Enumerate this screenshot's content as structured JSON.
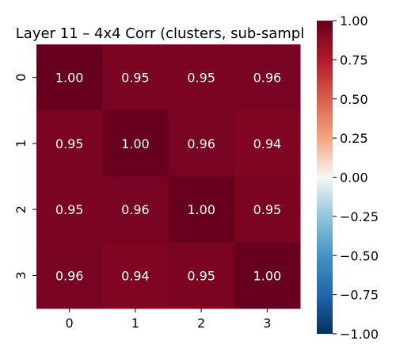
{
  "chart_data": {
    "type": "heatmap",
    "title": "Layer 11 – 4x4 Corr (clusters, sub-sampl",
    "xlabel": "",
    "ylabel": "",
    "x_categories": [
      "0",
      "1",
      "2",
      "3"
    ],
    "y_categories": [
      "0",
      "1",
      "2",
      "3"
    ],
    "values": [
      [
        1.0,
        0.95,
        0.95,
        0.96
      ],
      [
        0.95,
        1.0,
        0.96,
        0.94
      ],
      [
        0.95,
        0.96,
        1.0,
        0.95
      ],
      [
        0.96,
        0.94,
        0.95,
        1.0
      ]
    ],
    "cell_labels": [
      [
        "1.00",
        "0.95",
        "0.95",
        "0.96"
      ],
      [
        "0.95",
        "1.00",
        "0.96",
        "0.94"
      ],
      [
        "0.95",
        "0.96",
        "1.00",
        "0.95"
      ],
      [
        "0.96",
        "0.94",
        "0.95",
        "1.00"
      ]
    ],
    "colormap": "RdBu_r",
    "vmin": -1.0,
    "vmax": 1.0,
    "colorbar_ticks": [
      "1.00",
      "0.75",
      "0.50",
      "0.25",
      "0.00",
      "−0.25",
      "−0.50",
      "−0.75",
      "−1.00"
    ],
    "colorbar_tick_values": [
      1.0,
      0.75,
      0.5,
      0.25,
      0.0,
      -0.25,
      -0.5,
      -0.75,
      -1.0
    ],
    "annotation_color": "#ffffff",
    "grid": false
  }
}
